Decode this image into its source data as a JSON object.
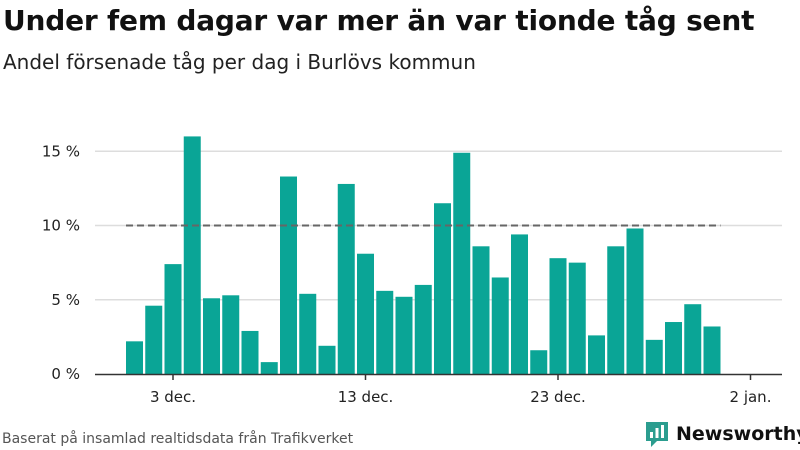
{
  "header": {
    "title": "Under fem dagar var mer än var tionde tåg sent",
    "subtitle": "Andel försenade tåg per dag i Burlövs kommun"
  },
  "footer": {
    "source": "Baserat på insamlad realtidsdata från Trafikverket",
    "brand": "Newsworthy"
  },
  "colors": {
    "bar": "#0aa596",
    "reference_line": "#666666",
    "grid": "#dddddd",
    "axis": "#333333",
    "brand": "#2b9d8f"
  },
  "chart_data": {
    "type": "bar",
    "x_start_label": "1 dec.",
    "x": [
      "1 dec.",
      "2 dec.",
      "3 dec.",
      "4 dec.",
      "5 dec.",
      "6 dec.",
      "7 dec.",
      "8 dec.",
      "9 dec.",
      "10 dec.",
      "11 dec.",
      "12 dec.",
      "13 dec.",
      "14 dec.",
      "15 dec.",
      "16 dec.",
      "17 dec.",
      "18 dec.",
      "19 dec.",
      "20 dec.",
      "21 dec.",
      "22 dec.",
      "23 dec.",
      "24 dec.",
      "25 dec.",
      "26 dec.",
      "27 dec.",
      "28 dec.",
      "29 dec.",
      "30 dec.",
      "31 dec."
    ],
    "values": [
      2.2,
      4.6,
      7.4,
      16.0,
      5.1,
      5.3,
      2.9,
      0.8,
      13.3,
      5.4,
      1.9,
      12.8,
      8.1,
      5.6,
      5.2,
      6.0,
      11.5,
      14.9,
      8.6,
      6.5,
      9.4,
      1.6,
      7.8,
      7.5,
      2.6,
      8.6,
      9.8,
      2.3,
      3.5,
      4.7,
      3.2
    ],
    "reference_line": 10,
    "ylim": [
      0,
      16.5
    ],
    "yticks": [
      0,
      5,
      10,
      15
    ],
    "ytick_labels": [
      "0 %",
      "5 %",
      "10 %",
      "15 %"
    ],
    "xticks": [
      {
        "label": "3 dec.",
        "index": 2
      },
      {
        "label": "13 dec.",
        "index": 12
      },
      {
        "label": "23 dec.",
        "index": 22
      },
      {
        "label": "2 jan.",
        "index": 32
      }
    ],
    "grid": true,
    "xlabel": "",
    "ylabel": ""
  }
}
